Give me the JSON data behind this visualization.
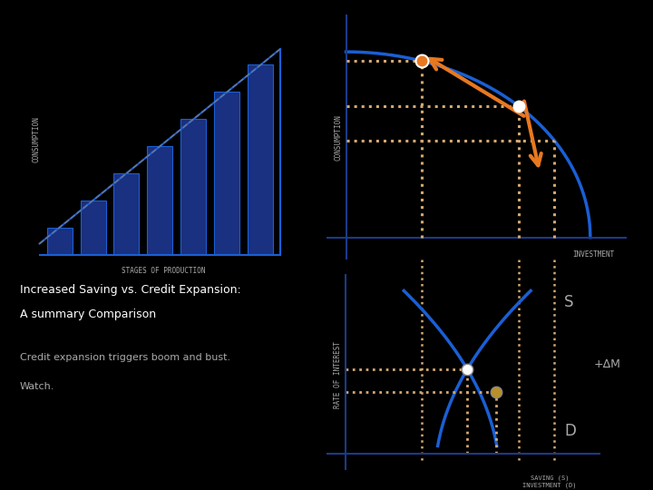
{
  "bg_color": "#000000",
  "text_color": "#ffffff",
  "blue_dark": "#1a3080",
  "blue_bright": "#1a5fd4",
  "orange_color": "#e87820",
  "dot_line_color": "#d4a870",
  "axis_color": "#1a3a8a",
  "gray_text": "#aaaaaa",
  "label_consumption_top": "CONSUMPTION",
  "label_consumption_left": "CONSUMPTION",
  "label_stages": "STAGES OF PRODUCTION",
  "label_investment": "INVESTMENT",
  "label_rate": "RATE OF INTEREST",
  "label_S": "S",
  "label_D": "D",
  "label_delta": "+ΔM",
  "title_line1": "Increased Saving vs. Credit Expansion:",
  "title_line2": "A summary Comparison",
  "subtitle1": "Credit expansion triggers boom and bust.",
  "subtitle2": "Watch."
}
